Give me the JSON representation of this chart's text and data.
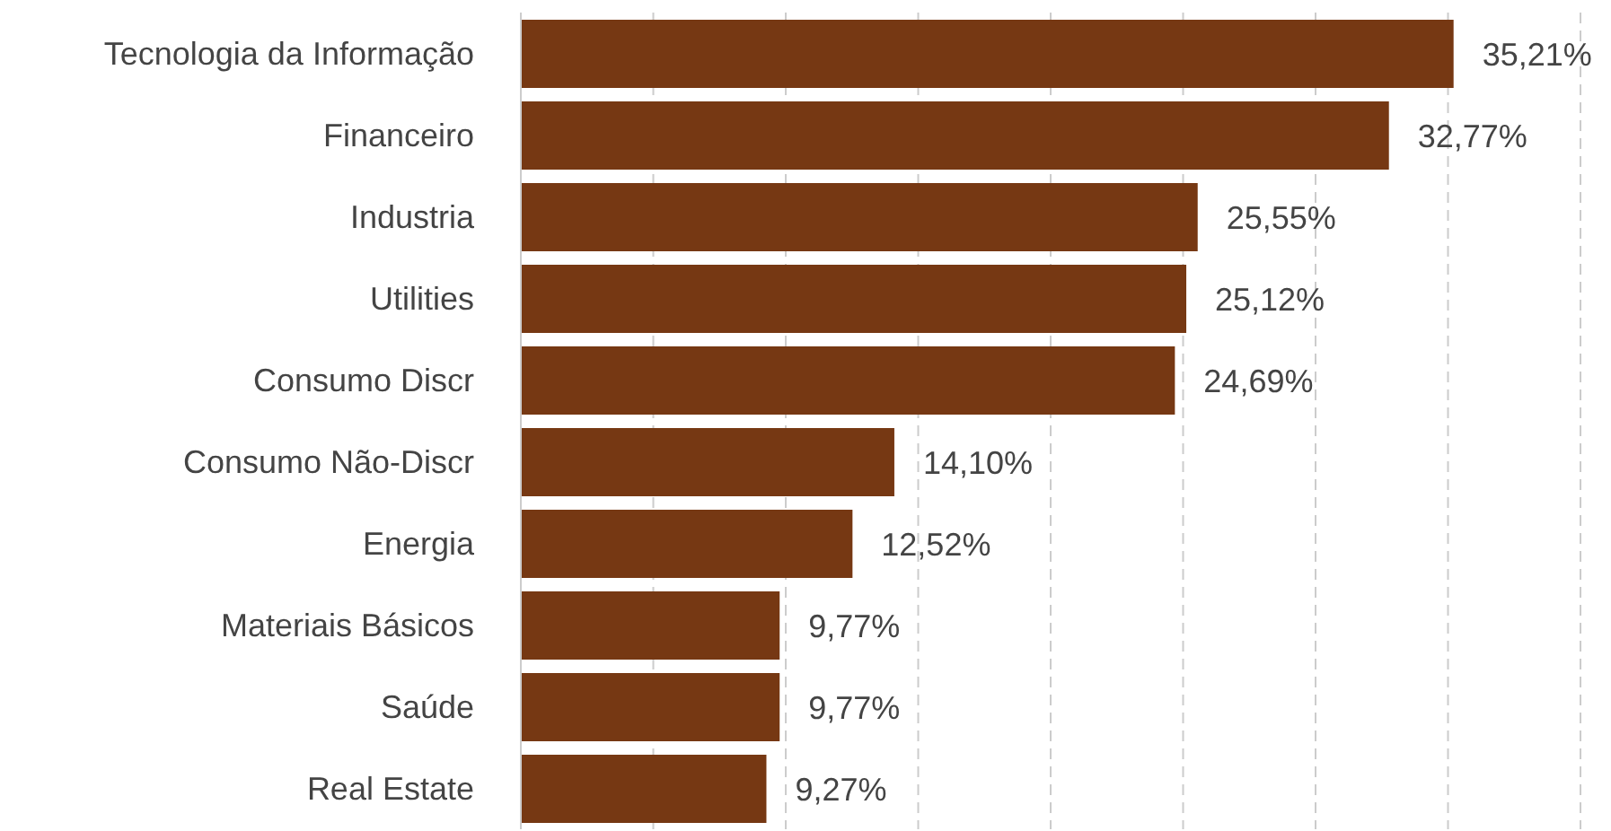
{
  "chart_data": {
    "type": "bar",
    "orientation": "horizontal",
    "categories": [
      "Tecnologia da Informação",
      "Financeiro",
      "Industria",
      "Utilities",
      "Consumo Discr",
      "Consumo Não-Discr",
      "Energia",
      "Materiais Básicos",
      "Saúde",
      "Real Estate"
    ],
    "values": [
      35.21,
      32.77,
      25.55,
      25.12,
      24.69,
      14.1,
      12.52,
      9.77,
      9.77,
      9.27
    ],
    "value_labels": [
      "35,21%",
      "32,77%",
      "25,55%",
      "25,12%",
      "24,69%",
      "14,10%",
      "12,52%",
      "9,77%",
      "9,77%",
      "9,27%"
    ],
    "color": "#763813",
    "xlim": [
      0,
      40
    ],
    "grid": "x",
    "tick_labels": "y",
    "legend": false
  }
}
